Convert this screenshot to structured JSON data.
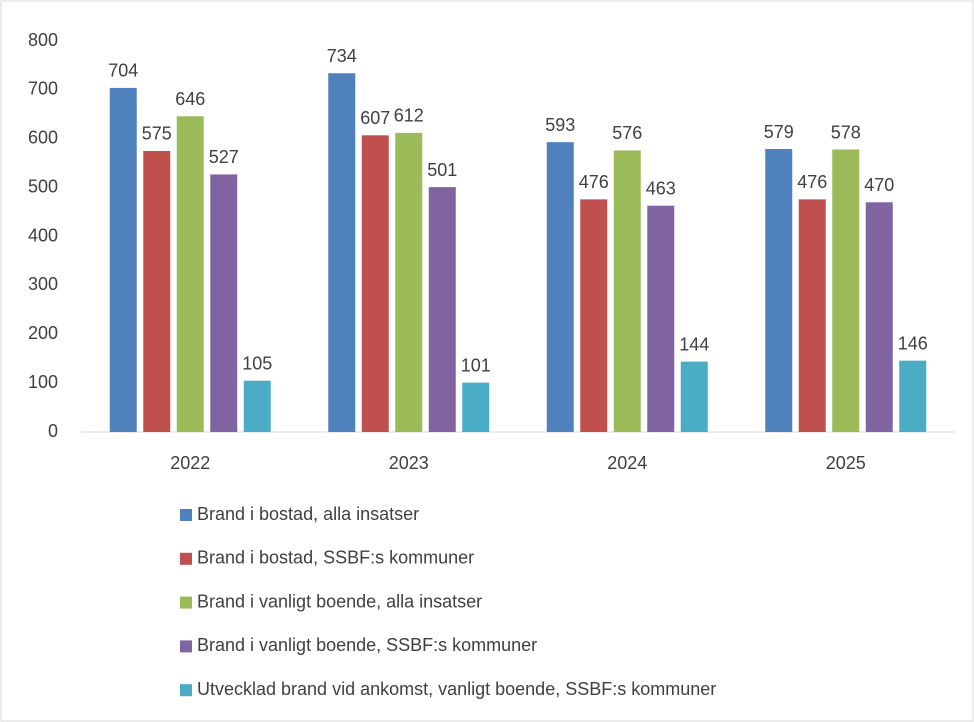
{
  "chart_data": {
    "type": "bar",
    "categories": [
      "2022",
      "2023",
      "2024",
      "2025"
    ],
    "series": [
      {
        "name": "Brand i bostad, alla insatser",
        "color": "#4f81bd",
        "values": [
          704,
          734,
          593,
          579
        ]
      },
      {
        "name": "Brand i bostad, SSBF:s kommuner",
        "color": "#c0504d",
        "values": [
          575,
          607,
          476,
          476
        ]
      },
      {
        "name": "Brand i vanligt boende, alla insatser",
        "color": "#9bbb59",
        "values": [
          646,
          612,
          576,
          578
        ]
      },
      {
        "name": "Brand i vanligt boende, SSBF:s kommuner",
        "color": "#8064a2",
        "values": [
          527,
          501,
          463,
          470
        ]
      },
      {
        "name": "Utvecklad brand vid ankomst, vanligt boende, SSBF:s kommuner",
        "color": "#4bacc6",
        "values": [
          105,
          101,
          144,
          146
        ]
      }
    ],
    "ylim": [
      0,
      800
    ],
    "yticks": [
      0,
      100,
      200,
      300,
      400,
      500,
      600,
      700,
      800
    ],
    "grid": false,
    "legend": "bottom"
  }
}
